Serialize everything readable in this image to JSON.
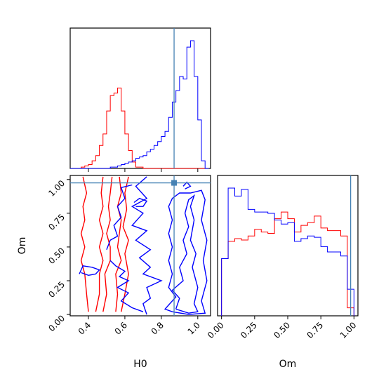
{
  "chart_data": {
    "type": "corner",
    "parameters": [
      "H0",
      "Om"
    ],
    "truth": {
      "H0": 0.87,
      "Om": 0.975
    },
    "truth_color": "#4682b4",
    "series_colors": {
      "red": "#ff0000",
      "blue": "#0000ff"
    },
    "grid": false,
    "panels": {
      "H0_hist": {
        "type": "histogram",
        "xlim": [
          0.3,
          1.07
        ],
        "bin_edges": [
          0.3,
          0.32,
          0.34,
          0.36,
          0.38,
          0.4,
          0.42,
          0.44,
          0.46,
          0.48,
          0.5,
          0.52,
          0.54,
          0.56,
          0.58,
          0.6,
          0.62,
          0.64,
          0.66,
          0.68,
          0.7,
          0.72,
          0.74,
          0.76,
          0.78,
          0.8,
          0.82,
          0.84,
          0.86,
          0.88,
          0.9,
          0.92,
          0.94,
          0.96,
          0.98,
          1.0,
          1.02,
          1.04,
          1.06
        ],
        "red_counts": [
          0,
          0,
          0,
          0.01,
          0.02,
          0.03,
          0.06,
          0.1,
          0.18,
          0.27,
          0.45,
          0.57,
          0.59,
          0.63,
          0.45,
          0.27,
          0.14,
          0.05,
          0.01,
          0.01,
          0,
          0,
          0,
          0,
          0,
          0,
          0,
          0,
          0,
          0,
          0,
          0,
          0,
          0,
          0,
          0,
          0,
          0
        ],
        "blue_counts": [
          0,
          0,
          0,
          0,
          0,
          0,
          0,
          0,
          0,
          0,
          0,
          0.01,
          0.01,
          0.02,
          0.03,
          0.04,
          0.05,
          0.06,
          0.08,
          0.09,
          0.1,
          0.13,
          0.15,
          0.18,
          0.21,
          0.25,
          0.29,
          0.4,
          0.52,
          0.61,
          0.72,
          0.7,
          0.95,
          1.0,
          0.72,
          0.38,
          0.06,
          0
        ]
      },
      "Om_hist": {
        "type": "histogram",
        "xlim": [
          -0.03,
          1.03
        ],
        "xticks": [
          "0.00",
          "0.25",
          "0.50",
          "0.75",
          "1.00"
        ],
        "xlabel": "Om",
        "bin_edges": [
          0.0,
          0.05,
          0.1,
          0.15,
          0.2,
          0.25,
          0.3,
          0.35,
          0.4,
          0.45,
          0.5,
          0.55,
          0.6,
          0.65,
          0.7,
          0.75,
          0.8,
          0.85,
          0.9,
          0.95,
          1.0
        ],
        "red_counts": [
          0.43,
          0.56,
          0.58,
          0.57,
          0.6,
          0.65,
          0.63,
          0.62,
          0.73,
          0.78,
          0.73,
          0.63,
          0.68,
          0.7,
          0.75,
          0.66,
          0.64,
          0.64,
          0.6,
          0.06
        ],
        "blue_counts": [
          0.43,
          0.96,
          0.9,
          0.95,
          0.8,
          0.78,
          0.78,
          0.77,
          0.72,
          0.69,
          0.7,
          0.56,
          0.58,
          0.6,
          0.59,
          0.52,
          0.48,
          0.48,
          0.45,
          0.2
        ]
      },
      "H0_vs_Om": {
        "type": "contour",
        "xlim": [
          0.3,
          1.07
        ],
        "ylim": [
          -0.01,
          1.03
        ],
        "xticks": [
          "0.4",
          "0.6",
          "0.8",
          "1.0"
        ],
        "yticks": [
          "0.00",
          "0.25",
          "0.50",
          "0.75",
          "1.00"
        ],
        "xlabel": "H0",
        "ylabel": "Om",
        "red_contours": [
          [
            [
              0.4,
              0.02
            ],
            [
              0.39,
              0.15
            ],
            [
              0.38,
              0.3
            ],
            [
              0.36,
              0.4
            ],
            [
              0.38,
              0.5
            ],
            [
              0.36,
              0.6
            ],
            [
              0.38,
              0.7
            ],
            [
              0.37,
              0.8
            ],
            [
              0.39,
              0.9
            ],
            [
              0.37,
              1.02
            ]
          ],
          [
            [
              0.44,
              0.02
            ],
            [
              0.46,
              0.15
            ],
            [
              0.46,
              0.3
            ],
            [
              0.48,
              0.4
            ],
            [
              0.46,
              0.5
            ],
            [
              0.48,
              0.6
            ],
            [
              0.46,
              0.7
            ],
            [
              0.48,
              0.8
            ],
            [
              0.47,
              0.9
            ],
            [
              0.48,
              1.02
            ]
          ],
          [
            [
              0.48,
              0.02
            ],
            [
              0.5,
              0.15
            ],
            [
              0.49,
              0.3
            ],
            [
              0.52,
              0.4
            ],
            [
              0.52,
              0.5
            ],
            [
              0.5,
              0.6
            ],
            [
              0.52,
              0.7
            ],
            [
              0.51,
              0.8
            ],
            [
              0.52,
              0.9
            ],
            [
              0.53,
              1.02
            ]
          ],
          [
            [
              0.55,
              0.02
            ],
            [
              0.56,
              0.15
            ],
            [
              0.55,
              0.3
            ],
            [
              0.58,
              0.4
            ],
            [
              0.56,
              0.5
            ],
            [
              0.57,
              0.6
            ],
            [
              0.58,
              0.7
            ],
            [
              0.56,
              0.8
            ],
            [
              0.58,
              0.9
            ],
            [
              0.57,
              1.02
            ]
          ],
          [
            [
              0.58,
              0.02
            ],
            [
              0.6,
              0.15
            ],
            [
              0.62,
              0.3
            ],
            [
              0.6,
              0.45
            ],
            [
              0.62,
              0.55
            ],
            [
              0.59,
              0.65
            ],
            [
              0.61,
              0.78
            ],
            [
              0.6,
              0.9
            ],
            [
              0.62,
              1.02
            ]
          ]
        ],
        "blue_contours": [
          [
            [
              0.72,
              0.0
            ],
            [
              0.7,
              0.08
            ],
            [
              0.74,
              0.12
            ],
            [
              0.72,
              0.2
            ],
            [
              0.8,
              0.25
            ],
            [
              0.7,
              0.3
            ],
            [
              0.74,
              0.35
            ],
            [
              0.68,
              0.42
            ],
            [
              0.74,
              0.48
            ],
            [
              0.66,
              0.55
            ],
            [
              0.72,
              0.62
            ],
            [
              0.64,
              0.66
            ],
            [
              0.7,
              0.75
            ],
            [
              0.64,
              0.8
            ],
            [
              0.72,
              0.86
            ],
            [
              0.66,
              0.95
            ],
            [
              0.72,
              1.02
            ]
          ],
          [
            [
              0.52,
              0.4
            ],
            [
              0.55,
              0.36
            ],
            [
              0.6,
              0.32
            ],
            [
              0.57,
              0.28
            ],
            [
              0.62,
              0.25
            ],
            [
              0.56,
              0.2
            ],
            [
              0.62,
              0.16
            ],
            [
              0.58,
              0.1
            ],
            [
              0.64,
              0.05
            ],
            [
              0.7,
              0.02
            ]
          ],
          [
            [
              0.5,
              0.48
            ],
            [
              0.52,
              0.55
            ],
            [
              0.56,
              0.58
            ],
            [
              0.54,
              0.66
            ],
            [
              0.58,
              0.72
            ],
            [
              0.56,
              0.8
            ],
            [
              0.6,
              0.86
            ],
            [
              0.58,
              0.94
            ],
            [
              0.64,
              0.96
            ]
          ],
          [
            [
              0.35,
              0.3
            ],
            [
              0.37,
              0.36
            ],
            [
              0.42,
              0.35
            ],
            [
              0.46,
              0.33
            ],
            [
              0.44,
              0.3
            ],
            [
              0.4,
              0.29
            ],
            [
              0.36,
              0.31
            ]
          ],
          [
            [
              0.65,
              0.83
            ],
            [
              0.68,
              0.86
            ],
            [
              0.72,
              0.84
            ],
            [
              0.7,
              0.8
            ],
            [
              0.66,
              0.8
            ]
          ],
          [
            [
              0.92,
              0.95
            ],
            [
              0.94,
              0.98
            ],
            [
              0.96,
              0.95
            ],
            [
              0.93,
              0.93
            ]
          ],
          [
            [
              0.88,
              0.04
            ],
            [
              0.9,
              0.12
            ],
            [
              0.86,
              0.18
            ],
            [
              0.92,
              0.25
            ],
            [
              0.9,
              0.35
            ],
            [
              0.94,
              0.45
            ],
            [
              0.92,
              0.55
            ],
            [
              0.95,
              0.65
            ],
            [
              0.93,
              0.75
            ],
            [
              0.95,
              0.85
            ],
            [
              0.98,
              0.88
            ],
            [
              0.96,
              0.8
            ],
            [
              0.98,
              0.7
            ],
            [
              0.96,
              0.55
            ],
            [
              0.99,
              0.45
            ],
            [
              0.97,
              0.35
            ],
            [
              1.0,
              0.2
            ],
            [
              0.98,
              0.08
            ],
            [
              1.0,
              0.02
            ],
            [
              0.95,
              0.01
            ],
            [
              0.88,
              0.04
            ]
          ],
          [
            [
              0.84,
              0.07
            ],
            [
              0.88,
              0.13
            ],
            [
              0.84,
              0.2
            ],
            [
              0.86,
              0.3
            ],
            [
              0.84,
              0.4
            ],
            [
              0.86,
              0.5
            ],
            [
              0.84,
              0.6
            ],
            [
              0.86,
              0.7
            ],
            [
              0.84,
              0.8
            ],
            [
              0.86,
              0.86
            ],
            [
              0.9,
              0.9
            ],
            [
              0.96,
              0.9
            ],
            [
              1.02,
              0.92
            ],
            [
              1.04,
              0.85
            ],
            [
              1.02,
              0.7
            ],
            [
              1.05,
              0.55
            ],
            [
              1.03,
              0.4
            ],
            [
              1.05,
              0.25
            ],
            [
              1.02,
              0.1
            ],
            [
              1.04,
              0.01
            ],
            [
              0.95,
              0.0
            ],
            [
              0.86,
              0.02
            ],
            [
              0.82,
              0.04
            ],
            [
              0.84,
              0.07
            ]
          ]
        ]
      }
    }
  }
}
